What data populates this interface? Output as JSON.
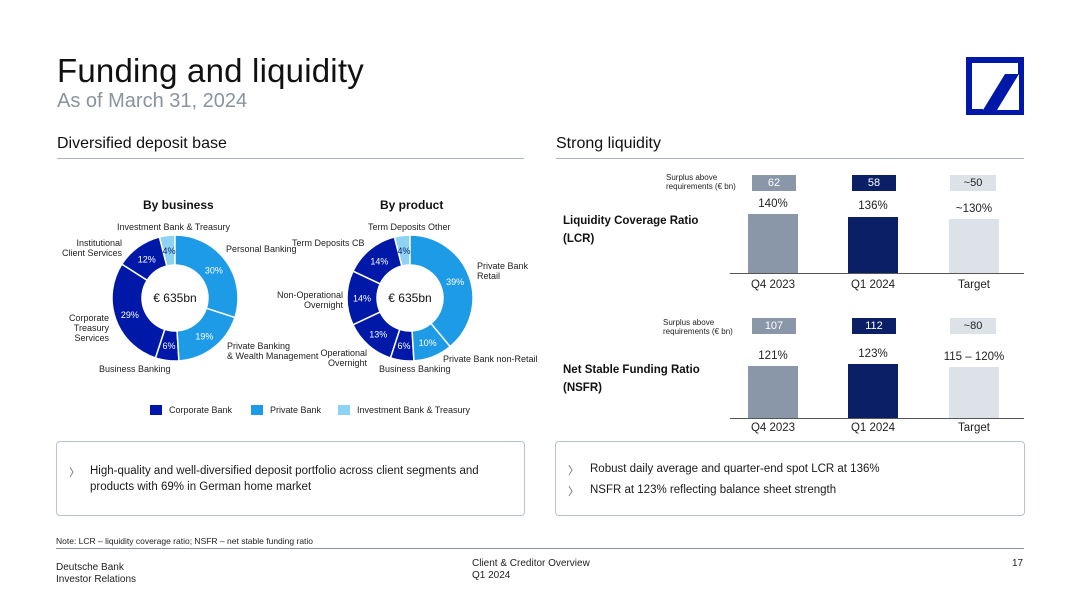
{
  "header": {
    "title": "Funding and liquidity",
    "subtitle": "As of March 31, 2024"
  },
  "left": {
    "heading": "Diversified deposit base",
    "by_business": {
      "title": "By business",
      "center": "€ 635bn",
      "segments": [
        {
          "label": "Personal Banking",
          "pct": "30%",
          "value": 30,
          "color": "#1e9be6"
        },
        {
          "label": "Private Banking & Wealth Management",
          "pct": "19%",
          "value": 19,
          "color": "#1e9be6"
        },
        {
          "label": "Business Banking",
          "pct": "6%",
          "value": 6,
          "color": "#0018a8"
        },
        {
          "label": "Corporate Treasury Services",
          "pct": "29%",
          "value": 29,
          "color": "#0018a8"
        },
        {
          "label": "Institutional Client Services",
          "pct": "12%",
          "value": 12,
          "color": "#0018a8"
        },
        {
          "label": "Investment Bank & Treasury",
          "pct": "4%",
          "value": 4,
          "color": "#8fd3f4"
        }
      ],
      "labels": {
        "ibt": "Investment Bank & Treasury",
        "personal": "Personal Banking",
        "ics_1": "Institutional",
        "ics_2": "Client Services",
        "cts_1": "Corporate",
        "cts_2": "Treasury",
        "cts_3": "Services",
        "pbwm_1": "Private Banking",
        "pbwm_2": "& Wealth Management",
        "bb": "Business Banking"
      }
    },
    "by_product": {
      "title": "By product",
      "center": "€ 635bn",
      "segments": [
        {
          "label": "Private Bank Retail",
          "pct": "39%",
          "value": 39,
          "color": "#1e9be6"
        },
        {
          "label": "Private Bank non-Retail",
          "pct": "10%",
          "value": 10,
          "color": "#1e9be6"
        },
        {
          "label": "Business Banking",
          "pct": "6%",
          "value": 6,
          "color": "#0018a8"
        },
        {
          "label": "Operational Overnight",
          "pct": "13%",
          "value": 13,
          "color": "#0018a8"
        },
        {
          "label": "Non-Operational Overnight",
          "pct": "14%",
          "value": 14,
          "color": "#0018a8"
        },
        {
          "label": "Term Deposits CB",
          "pct": "14%",
          "value": 14,
          "color": "#0018a8"
        },
        {
          "label": "Term Deposits Other",
          "pct": "4%",
          "value": 4,
          "color": "#8fd3f4"
        }
      ],
      "labels": {
        "tdo": "Term Deposits Other",
        "tdcb": "Term Deposits CB",
        "pbr_1": "Private Bank",
        "pbr_2": "Retail",
        "noo_1": "Non-Operational",
        "noo_2": "Overnight",
        "oo_1": "Operational",
        "oo_2": "Overnight",
        "pbnr": "Private Bank non-Retail",
        "bb": "Business Banking"
      }
    },
    "legend": [
      {
        "label": "Corporate Bank",
        "color": "#0018a8"
      },
      {
        "label": "Private Bank",
        "color": "#1e9be6"
      },
      {
        "label": "Investment Bank & Treasury",
        "color": "#8fd3f4"
      }
    ],
    "bullets": [
      "High-quality and well-diversified deposit portfolio across client segments and products with 69% in German home market"
    ]
  },
  "right": {
    "heading": "Strong liquidity",
    "surplus_label_1": "Surplus above",
    "surplus_label_2": "requirements (€ bn)",
    "lcr": {
      "label_1": "Liquidity Coverage Ratio",
      "label_2": "(LCR)",
      "surplus": [
        "62",
        "58",
        "~50"
      ],
      "values": [
        "140%",
        "136%",
        "~130%"
      ],
      "categories": [
        "Q4 2023",
        "Q1 2024",
        "Target"
      ]
    },
    "nsfr": {
      "label_1": "Net Stable Funding Ratio",
      "label_2": "(NSFR)",
      "surplus": [
        "107",
        "112",
        "~80"
      ],
      "values": [
        "121%",
        "123%",
        "115 – 120%"
      ],
      "categories": [
        "Q4 2023",
        "Q1 2024",
        "Target"
      ]
    },
    "bullets": [
      "Robust daily average and quarter-end spot LCR at 136%",
      "NSFR at 123% reflecting balance sheet strength"
    ]
  },
  "colors": {
    "q4": "#8a97a9",
    "q1": "#0b1f66",
    "target": "#dde1e8",
    "pill_q4": "#8a97a9",
    "pill_q1": "#0b1f66",
    "pill_target": "#dde1e8"
  },
  "footer": {
    "note": "Note: LCR – liquidity coverage ratio; NSFR – net stable funding ratio",
    "company_1": "Deutsche Bank",
    "company_2": "Investor Relations",
    "doc_1": "Client & Creditor Overview",
    "doc_2": "Q1 2024",
    "page": "17"
  },
  "chevron": "〉"
}
